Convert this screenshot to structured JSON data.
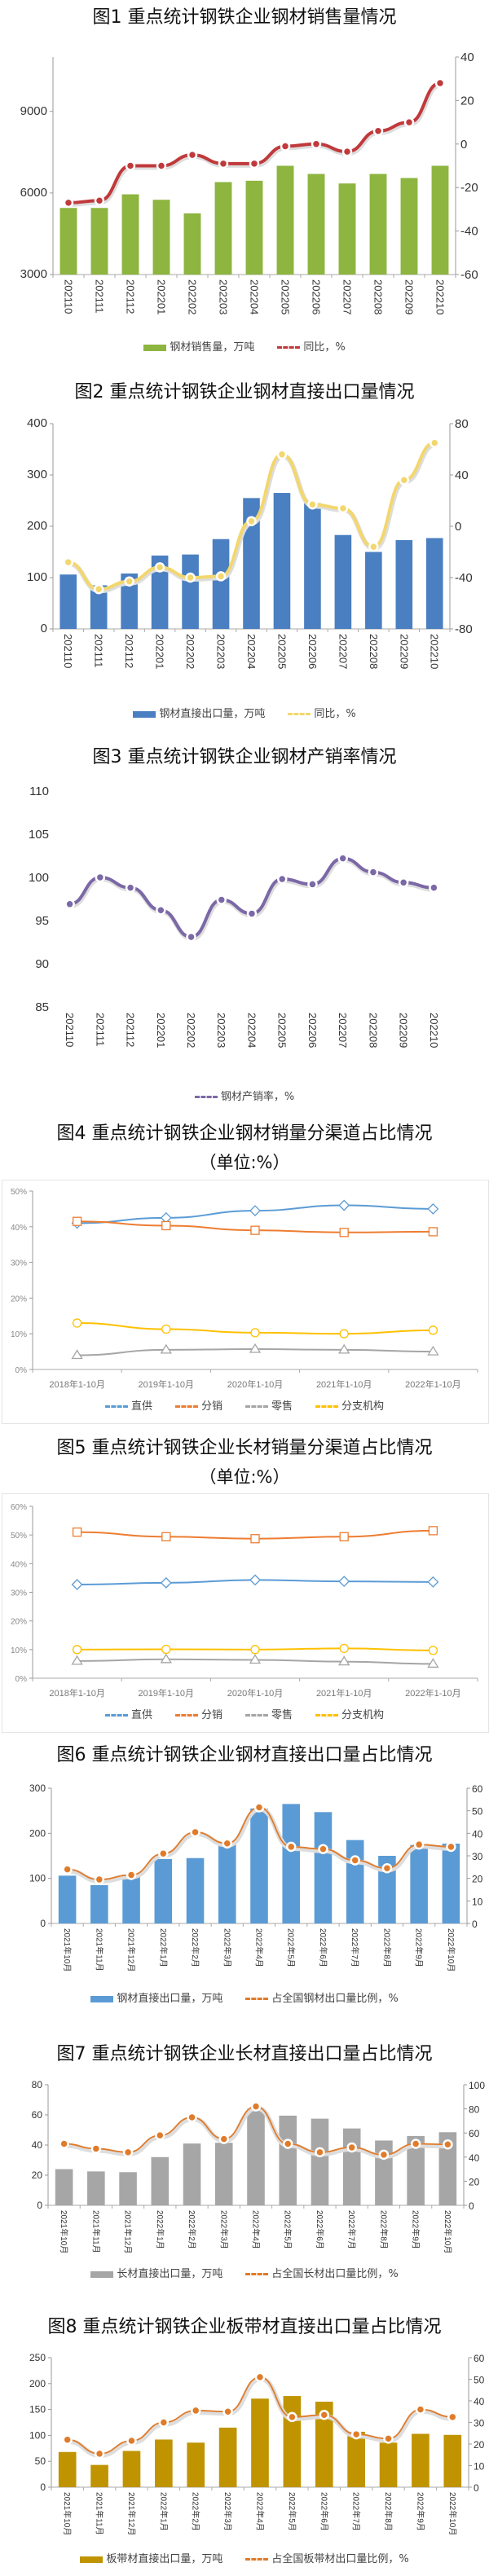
{
  "chart_data": [
    {
      "type": "bar+line",
      "title": "图1  重点统计钢铁企业钢材销售量情况",
      "categories": [
        "202110",
        "202111",
        "202112",
        "202201",
        "202202",
        "202203",
        "202204",
        "202205",
        "202206",
        "202207",
        "202208",
        "202209",
        "202210"
      ],
      "y_left": {
        "range": [
          3000,
          11000
        ],
        "ticks": [
          3000,
          6000,
          9000
        ]
      },
      "y_right": {
        "range": [
          -60,
          40
        ],
        "ticks": [
          -60,
          -40,
          -20,
          0,
          20,
          40
        ]
      },
      "series": [
        {
          "name": "钢材销售量，万吨",
          "kind": "bar",
          "axis": "left",
          "color": "#8db53f",
          "values": [
            5450,
            5450,
            5950,
            5750,
            5250,
            6400,
            6450,
            7000,
            6700,
            6350,
            6700,
            6550,
            7000
          ]
        },
        {
          "name": "同比，%",
          "kind": "line",
          "axis": "right",
          "color": "#c0393b",
          "marker": "dot",
          "values": [
            -27,
            -26,
            -10,
            -10,
            -5,
            -9,
            -9,
            -1,
            0,
            -3.5,
            6,
            10,
            28
          ]
        }
      ]
    },
    {
      "type": "bar+line",
      "title": "图2  重点统计钢铁企业钢材直接出口量情况",
      "categories": [
        "202110",
        "202111",
        "202112",
        "202201",
        "202202",
        "202203",
        "202204",
        "202205",
        "202206",
        "202207",
        "202208",
        "202209",
        "202210"
      ],
      "y_left": {
        "range": [
          0,
          400
        ],
        "ticks": [
          0,
          100,
          200,
          300,
          400
        ]
      },
      "y_right": {
        "range": [
          -80,
          80
        ],
        "ticks": [
          -80,
          -40,
          0,
          40,
          80
        ]
      },
      "series": [
        {
          "name": "钢材直接出口量，万吨",
          "kind": "bar",
          "axis": "left",
          "color": "#4a7fc1",
          "values": [
            106,
            85,
            108,
            143,
            145,
            175,
            255,
            265,
            245,
            183,
            150,
            173,
            177
          ]
        },
        {
          "name": "同比，%",
          "kind": "line",
          "axis": "right",
          "color": "#f3d76e",
          "marker": "dot",
          "values": [
            -28,
            -49,
            -43,
            -32,
            -40,
            -39,
            4,
            56,
            17,
            14,
            -16,
            36,
            65
          ]
        }
      ]
    },
    {
      "type": "line",
      "title": "图3  重点统计钢铁企业钢材产销率情况",
      "categories": [
        "202110",
        "202111",
        "202112",
        "202201",
        "202202",
        "202203",
        "202204",
        "202205",
        "202206",
        "202207",
        "202208",
        "202209",
        "202210"
      ],
      "y_left": {
        "range": [
          85,
          110
        ],
        "ticks": [
          85,
          90,
          95,
          100,
          105,
          110
        ]
      },
      "series": [
        {
          "name": "钢材产销率，%",
          "kind": "line",
          "axis": "left",
          "color": "#7b68a6",
          "marker": "dot",
          "values": [
            97,
            100.1,
            98.9,
            96.3,
            93.2,
            97.5,
            95.9,
            99.9,
            99.3,
            102.3,
            100.7,
            99.5,
            98.9
          ]
        }
      ]
    },
    {
      "type": "line",
      "title": "图4  重点统计钢铁企业钢材销量分渠道占比情况",
      "subtitle": "（单位:%）",
      "categories": [
        "2018年1-10月",
        "2019年1-10月",
        "2020年1-10月",
        "2021年1-10月",
        "2022年1-10月"
      ],
      "y_left": {
        "range": [
          0,
          50
        ],
        "ticks": [
          "0%",
          "10%",
          "20%",
          "30%",
          "40%",
          "50%"
        ]
      },
      "series": [
        {
          "name": "直供",
          "kind": "line",
          "color": "#5b9bd5",
          "marker": "diamond",
          "values": [
            41,
            42.5,
            44.5,
            46,
            45
          ]
        },
        {
          "name": "分销",
          "kind": "line",
          "color": "#ed7d31",
          "marker": "square",
          "values": [
            41.5,
            40.3,
            39,
            38.4,
            38.6
          ]
        },
        {
          "name": "零售",
          "kind": "line",
          "color": "#a5a5a5",
          "marker": "triangle",
          "values": [
            4,
            5.5,
            5.7,
            5.5,
            5
          ]
        },
        {
          "name": "分支机构",
          "kind": "line",
          "color": "#ffc000",
          "marker": "circle",
          "values": [
            13,
            11.3,
            10.3,
            10,
            11
          ]
        }
      ]
    },
    {
      "type": "line",
      "title": "图5  重点统计钢铁企业长材销量分渠道占比情况",
      "subtitle": "（单位:%）",
      "categories": [
        "2018年1-10月",
        "2019年1-10月",
        "2020年1-10月",
        "2021年1-10月",
        "2022年1-10月"
      ],
      "y_left": {
        "range": [
          0,
          60
        ],
        "ticks": [
          "0%",
          "10%",
          "20%",
          "30%",
          "40%",
          "50%",
          "60%"
        ]
      },
      "series": [
        {
          "name": "直供",
          "kind": "line",
          "color": "#5b9bd5",
          "marker": "diamond",
          "values": [
            32.7,
            33.3,
            34.3,
            33.8,
            33.6
          ]
        },
        {
          "name": "分销",
          "kind": "line",
          "color": "#ed7d31",
          "marker": "square",
          "values": [
            51,
            49.4,
            48.7,
            49.4,
            51.5
          ]
        },
        {
          "name": "零售",
          "kind": "line",
          "color": "#a5a5a5",
          "marker": "triangle",
          "values": [
            6,
            6.6,
            6.4,
            5.8,
            5
          ]
        },
        {
          "name": "分支机构",
          "kind": "line",
          "color": "#ffc000",
          "marker": "circle",
          "values": [
            10,
            10.1,
            10,
            10.4,
            9.7
          ]
        }
      ]
    },
    {
      "type": "bar+line",
      "title": "图6  重点统计钢铁企业钢材直接出口量占比情况",
      "categories": [
        "2021年10月",
        "2021年11月",
        "2021年12月",
        "2022年1月",
        "2022年2月",
        "2022年3月",
        "2022年4月",
        "2022年5月",
        "2022年6月",
        "2022年7月",
        "2022年8月",
        "2022年9月",
        "2022年10月"
      ],
      "y_left": {
        "range": [
          0,
          300
        ],
        "ticks": [
          0,
          100,
          200,
          300
        ]
      },
      "y_right": {
        "range": [
          0,
          60
        ],
        "ticks": [
          0,
          10,
          20,
          30,
          40,
          50,
          60
        ]
      },
      "series": [
        {
          "name": "钢材直接出口量，万吨",
          "kind": "bar",
          "axis": "left",
          "color": "#5b9bd5",
          "values": [
            106,
            85,
            108,
            143,
            145,
            177,
            255,
            265,
            247,
            185,
            150,
            174,
            177
          ]
        },
        {
          "name": "占全国钢材出口量比例，%",
          "kind": "line",
          "axis": "right",
          "color": "#e07b2a",
          "marker": "dot",
          "values": [
            24,
            19.5,
            21.5,
            31,
            40.5,
            35.5,
            51.5,
            34,
            33,
            28,
            24.5,
            35,
            34
          ]
        }
      ]
    },
    {
      "type": "bar+line",
      "title": "图7  重点统计钢铁企业长材直接出口量占比情况",
      "categories": [
        "2021年10月",
        "2021年11月",
        "2021年12月",
        "2022年1月",
        "2022年2月",
        "2022年3月",
        "2022年4月",
        "2022年5月",
        "2022年6月",
        "2022年7月",
        "2022年8月",
        "2022年9月",
        "2022年10月"
      ],
      "y_left": {
        "range": [
          0,
          80
        ],
        "ticks": [
          0,
          20,
          40,
          60,
          80
        ]
      },
      "y_right": {
        "range": [
          0,
          100
        ],
        "ticks": [
          0,
          20,
          40,
          60,
          80,
          100
        ]
      },
      "series": [
        {
          "name": "长材直接出口量，万吨",
          "kind": "bar",
          "axis": "left",
          "color": "#a6a6a6",
          "values": [
            24,
            22.5,
            22,
            32,
            41,
            41.5,
            64,
            59.5,
            57.5,
            51,
            43,
            46,
            48.5
          ]
        },
        {
          "name": "占全国长材出口量比例，%",
          "kind": "line",
          "axis": "right",
          "color": "#e07b2a",
          "marker": "dot",
          "values": [
            51,
            47,
            44,
            58,
            73,
            55,
            82,
            51,
            44,
            48,
            42,
            51,
            50.5
          ]
        }
      ]
    },
    {
      "type": "bar+line",
      "title": "图8  重点统计钢铁企业板带材直接出口量占比情况",
      "categories": [
        "2021年10月",
        "2021年11月",
        "2021年12月",
        "2022年1月",
        "2022年2月",
        "2022年3月",
        "2022年4月",
        "2022年5月",
        "2022年6月",
        "2022年7月",
        "2022年8月",
        "2022年9月",
        "2022年10月"
      ],
      "y_left": {
        "range": [
          0,
          250
        ],
        "ticks": [
          0,
          50,
          100,
          150,
          200,
          250
        ]
      },
      "y_right": {
        "range": [
          0,
          60
        ],
        "ticks": [
          0,
          10,
          20,
          30,
          40,
          50,
          60
        ]
      },
      "series": [
        {
          "name": "板带材直接出口量，万吨",
          "kind": "bar",
          "axis": "left",
          "color": "#c09400",
          "values": [
            68,
            43,
            70,
            92,
            86,
            115,
            171,
            176,
            165,
            107,
            86,
            103,
            101
          ]
        },
        {
          "name": "占全国板带材出口量比例，%",
          "kind": "line",
          "axis": "right",
          "color": "#e07b2a",
          "marker": "dot",
          "values": [
            22,
            15.5,
            21.5,
            30,
            35.5,
            35,
            51,
            32.5,
            33.5,
            24.5,
            22.5,
            36,
            32.5
          ]
        }
      ]
    }
  ]
}
